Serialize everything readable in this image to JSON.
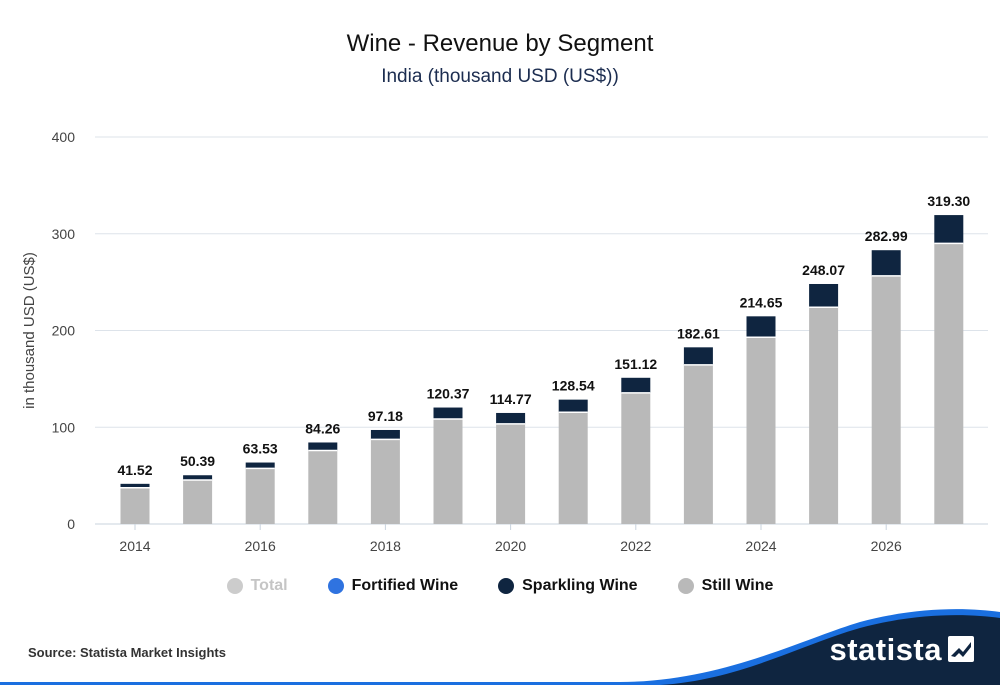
{
  "header": {
    "title": "Wine - Revenue by Segment",
    "subtitle": "India (thousand USD (US$))"
  },
  "footer": {
    "source": "Source: Statista Market Insights",
    "brand": "statista"
  },
  "colors": {
    "still": "#b9b9b9",
    "sparkling": "#0f2540",
    "fortified": "#2f73e0",
    "total": "#cccccc",
    "grid": "#dde3ea",
    "brand_blue": "#1a6fe0",
    "brand_navy": "#0f2540"
  },
  "legend": [
    {
      "label": "Total",
      "color": "#cccccc",
      "muted": true
    },
    {
      "label": "Fortified Wine",
      "color": "#2f73e0",
      "muted": false
    },
    {
      "label": "Sparkling Wine",
      "color": "#0f2540",
      "muted": false
    },
    {
      "label": "Still Wine",
      "color": "#b9b9b9",
      "muted": false
    }
  ],
  "chart_data": {
    "type": "bar",
    "stacked": true,
    "title": "Wine - Revenue by Segment",
    "subtitle": "India (thousand USD (US$))",
    "ylabel": "in thousand USD (US$)",
    "xlabel": "",
    "ylim": [
      0,
      400
    ],
    "yticks": [
      0,
      100,
      200,
      300,
      400
    ],
    "xtick_labels": [
      "2014",
      "2016",
      "2018",
      "2020",
      "2022",
      "2024",
      "2026"
    ],
    "categories": [
      "2014",
      "2015",
      "2016",
      "2017",
      "2018",
      "2019",
      "2020",
      "2021",
      "2022",
      "2023",
      "2024",
      "2025",
      "2026",
      "2027"
    ],
    "series": [
      {
        "name": "Still Wine",
        "values": [
          37.5,
          45.5,
          57.5,
          76.0,
          87.5,
          108.5,
          103.5,
          115.5,
          135.5,
          164.5,
          193.0,
          224.0,
          256.5,
          290.0
        ]
      },
      {
        "name": "Sparkling Wine",
        "values": [
          4.02,
          4.89,
          6.03,
          8.26,
          9.68,
          11.87,
          11.27,
          13.04,
          15.62,
          18.11,
          21.65,
          24.07,
          26.49,
          29.3
        ]
      },
      {
        "name": "Fortified Wine",
        "values": [
          0,
          0,
          0,
          0,
          0,
          0,
          0,
          0,
          0,
          0,
          0,
          0,
          0,
          0
        ]
      }
    ],
    "totals": [
      41.52,
      50.39,
      63.53,
      84.26,
      97.18,
      120.37,
      114.77,
      128.54,
      151.12,
      182.61,
      214.65,
      248.07,
      282.99,
      319.3
    ],
    "total_labels": [
      "41.52",
      "50.39",
      "63.53",
      "84.26",
      "97.18",
      "120.37",
      "114.77",
      "128.54",
      "151.12",
      "182.61",
      "214.65",
      "248.07",
      "282.99",
      "319.30"
    ],
    "grid": true,
    "legend_position": "bottom"
  }
}
